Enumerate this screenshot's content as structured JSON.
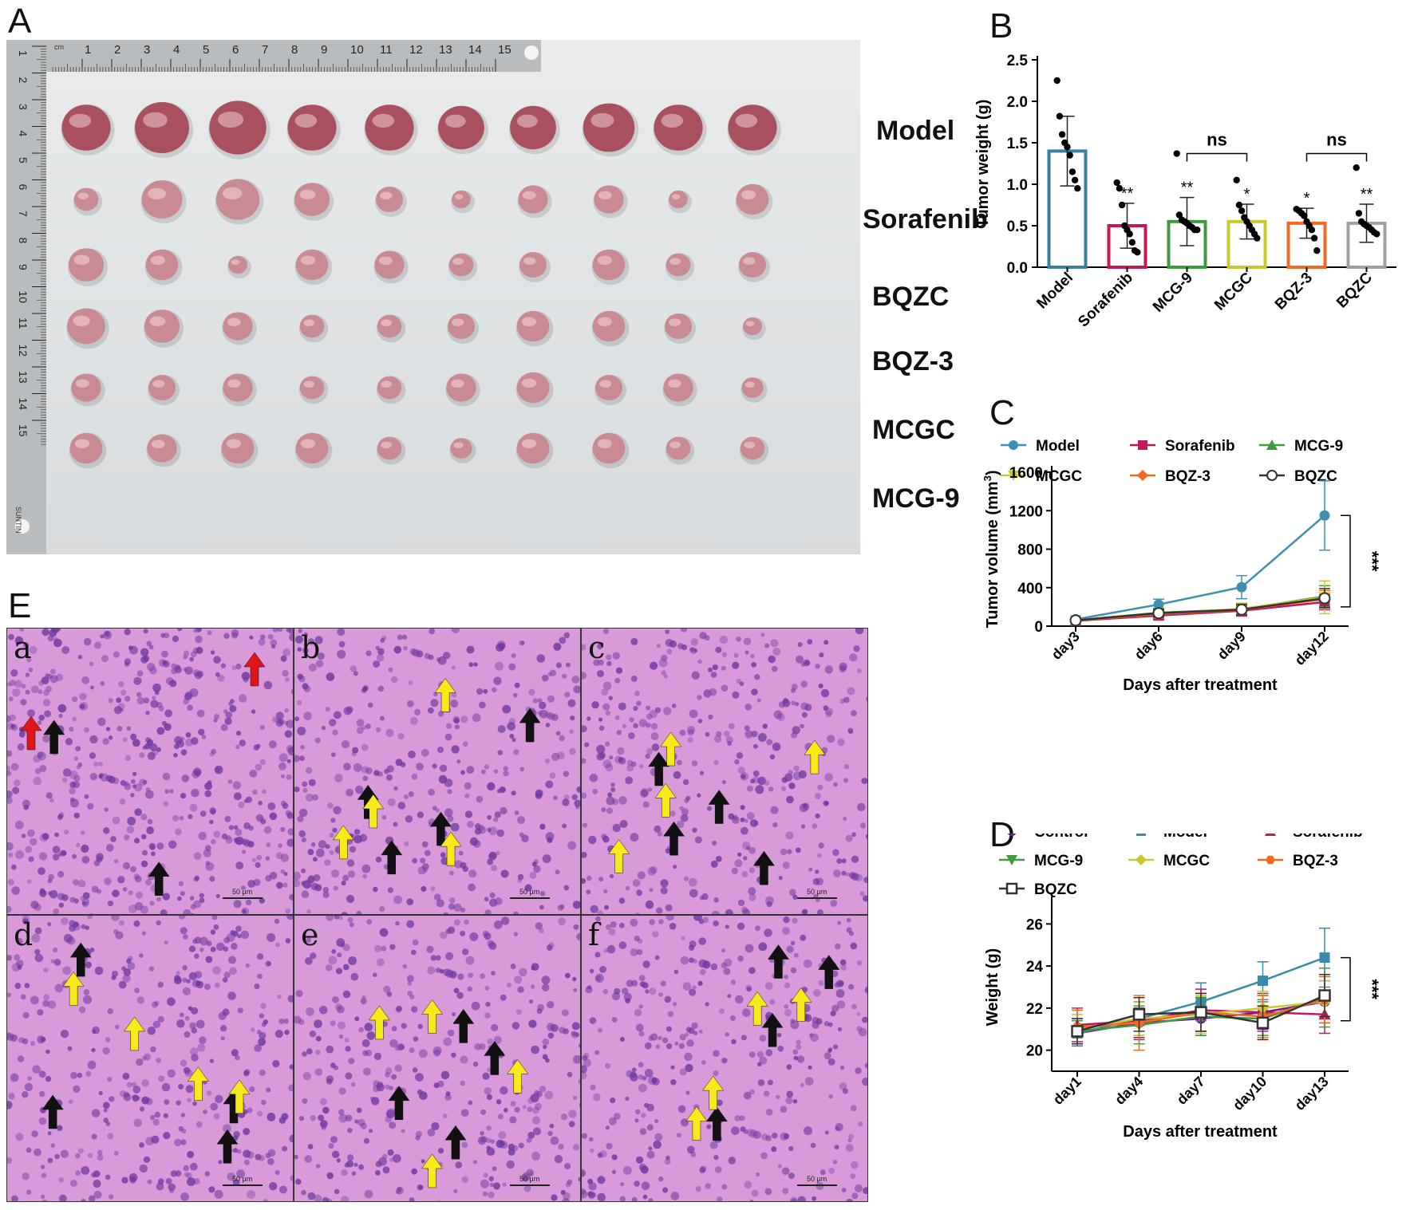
{
  "panels": {
    "A": "A",
    "B": "B",
    "C": "C",
    "D": "D",
    "E": "E"
  },
  "panel_a": {
    "ruler_top_ticks": [
      "1",
      "2",
      "3",
      "4",
      "5",
      "6",
      "7",
      "8",
      "9",
      "10",
      "11",
      "12",
      "13",
      "14",
      "15"
    ],
    "ruler_side_ticks": [
      "1",
      "2",
      "3",
      "4",
      "5",
      "6",
      "7",
      "8",
      "9",
      "10",
      "11",
      "12",
      "13",
      "14",
      "15"
    ],
    "ruler_cm": "cm",
    "ruler_brand": "SUNTIN",
    "rows": [
      "Model",
      "Sorafenib",
      "BQZC",
      "BQZ-3",
      "MCGC",
      "MCG-9"
    ],
    "tumor_sizes": [
      [
        0.9,
        1.0,
        1.05,
        0.9,
        0.9,
        0.85,
        0.85,
        0.95,
        0.9,
        0.9
      ],
      [
        0.45,
        0.75,
        0.8,
        0.65,
        0.5,
        0.35,
        0.55,
        0.55,
        0.35,
        0.6
      ],
      [
        0.65,
        0.6,
        0.35,
        0.6,
        0.55,
        0.45,
        0.5,
        0.6,
        0.45,
        0.5
      ],
      [
        0.7,
        0.65,
        0.55,
        0.45,
        0.45,
        0.5,
        0.6,
        0.6,
        0.5,
        0.35
      ],
      [
        0.55,
        0.5,
        0.55,
        0.45,
        0.45,
        0.55,
        0.6,
        0.5,
        0.55,
        0.4
      ],
      [
        0.6,
        0.55,
        0.6,
        0.6,
        0.45,
        0.4,
        0.6,
        0.6,
        0.45,
        0.45
      ]
    ],
    "colors": {
      "tumor": "#c98b93",
      "tumor_dark": "#a8505e",
      "ruler": "#b9bcbe"
    }
  },
  "panel_e": {
    "tiles": [
      {
        "letter": "a",
        "black_arrows": 2,
        "yellow_arrows": 0,
        "red_arrows": 2,
        "scale": "50 μm"
      },
      {
        "letter": "b",
        "black_arrows": 4,
        "yellow_arrows": 4,
        "red_arrows": 0,
        "scale": "50 μm"
      },
      {
        "letter": "c",
        "black_arrows": 4,
        "yellow_arrows": 4,
        "red_arrows": 0,
        "scale": "50 μm"
      },
      {
        "letter": "d",
        "black_arrows": 4,
        "yellow_arrows": 4,
        "red_arrows": 0,
        "scale": "50 μm"
      },
      {
        "letter": "e",
        "black_arrows": 4,
        "yellow_arrows": 4,
        "red_arrows": 0,
        "scale": "50 μm"
      },
      {
        "letter": "f",
        "black_arrows": 4,
        "yellow_arrows": 4,
        "red_arrows": 0,
        "scale": "50 μm"
      }
    ],
    "colors": {
      "tissue": "#d89ad8",
      "nuclei": "#6d3aa0",
      "black_arrow": "#111111",
      "yellow_arrow": "#f5ea1a",
      "red_arrow": "#e0161b"
    }
  },
  "chart_data": [
    {
      "id": "B",
      "type": "bar",
      "ylabel": "Tumor weight (g)",
      "xlabel": "",
      "ylim": [
        0,
        2.5
      ],
      "yticks": [
        "0.0",
        "0.5",
        "1.0",
        "1.5",
        "2.0",
        "2.5"
      ],
      "categories": [
        "Model",
        "Sorafenib",
        "MCG-9",
        "MCGC",
        "BQZ-3",
        "BQZC"
      ],
      "values": [
        1.4,
        0.5,
        0.55,
        0.55,
        0.53,
        0.53
      ],
      "errors": [
        0.42,
        0.27,
        0.29,
        0.21,
        0.18,
        0.23
      ],
      "bar_colors": [
        "#3a7fa0",
        "#c2185b",
        "#3e9a3a",
        "#c9c92d",
        "#f26a21",
        "#a0a0a0"
      ],
      "points": [
        [
          2.25,
          1.82,
          1.6,
          1.5,
          1.45,
          1.35,
          1.15,
          1.05,
          0.95
        ],
        [
          1.02,
          0.95,
          0.75,
          0.5,
          0.45,
          0.4,
          0.3,
          0.2,
          0.18
        ],
        [
          1.37,
          0.63,
          0.57,
          0.55,
          0.53,
          0.5,
          0.48,
          0.45,
          0.45
        ],
        [
          1.05,
          0.75,
          0.68,
          0.6,
          0.55,
          0.5,
          0.45,
          0.4,
          0.35
        ],
        [
          0.7,
          0.68,
          0.65,
          0.62,
          0.55,
          0.5,
          0.45,
          0.35,
          0.2
        ],
        [
          1.2,
          0.65,
          0.55,
          0.52,
          0.5,
          0.48,
          0.45,
          0.42,
          0.4
        ]
      ],
      "significance": [
        "",
        "**",
        "**",
        "*",
        "*",
        "**"
      ],
      "brackets": [
        {
          "from": "MCG-9",
          "to": "MCGC",
          "label": "ns"
        },
        {
          "from": "BQZ-3",
          "to": "BQZC",
          "label": "ns"
        }
      ]
    },
    {
      "id": "C",
      "type": "line",
      "xlabel": "Days after treatment",
      "ylabel": "Tumor volume (mm",
      "ylabel_sup": "3",
      "ylabel_tail": ")",
      "ylim": [
        0,
        1600
      ],
      "yticks": [
        "0",
        "400",
        "800",
        "1200",
        "1600"
      ],
      "categories": [
        "day3",
        "day6",
        "day9",
        "day12"
      ],
      "series": [
        {
          "name": "Model",
          "marker": "circle",
          "color": "#3f8fb0",
          "values": [
            70,
            225,
            405,
            1150
          ],
          "errors": [
            15,
            55,
            120,
            360
          ]
        },
        {
          "name": "Sorafenib",
          "marker": "square",
          "color": "#c2185b",
          "values": [
            55,
            110,
            160,
            250
          ],
          "errors": [
            12,
            40,
            55,
            80
          ]
        },
        {
          "name": "MCG-9",
          "marker": "triangle-up",
          "color": "#3e9a3a",
          "values": [
            60,
            140,
            175,
            310
          ],
          "errors": [
            15,
            45,
            60,
            110
          ]
        },
        {
          "name": "MCGC",
          "marker": "triangle-down",
          "color": "#c9c92d",
          "values": [
            62,
            130,
            180,
            300
          ],
          "errors": [
            15,
            40,
            60,
            170
          ]
        },
        {
          "name": "BQZ-3",
          "marker": "diamond",
          "color": "#f26a21",
          "values": [
            58,
            125,
            170,
            280
          ],
          "errors": [
            15,
            40,
            55,
            90
          ]
        },
        {
          "name": "BQZC",
          "marker": "open-circle",
          "color": "#333333",
          "values": [
            60,
            135,
            172,
            290
          ],
          "errors": [
            15,
            40,
            55,
            100
          ]
        }
      ],
      "significance": "***"
    },
    {
      "id": "D",
      "type": "line",
      "xlabel": "Days after treatment",
      "ylabel": "Weight (g)",
      "ylim": [
        19,
        27
      ],
      "yticks": [
        "20",
        "22",
        "24",
        "26"
      ],
      "categories": [
        "day1",
        "day4",
        "day7",
        "day10",
        "day13"
      ],
      "series": [
        {
          "name": "Control",
          "marker": "circle",
          "color": "#6a1b9a",
          "values": [
            20.8,
            21.3,
            21.5,
            21.8,
            22.3
          ],
          "errors": [
            0.6,
            0.7,
            0.8,
            0.8,
            1.0
          ]
        },
        {
          "name": "Model",
          "marker": "square",
          "color": "#3a8aa8",
          "values": [
            20.8,
            21.5,
            22.3,
            23.3,
            24.4
          ],
          "errors": [
            0.6,
            0.8,
            0.9,
            0.9,
            1.4
          ]
        },
        {
          "name": "Sorafenib",
          "marker": "triangle-up",
          "color": "#c2185b",
          "values": [
            21.2,
            21.4,
            21.9,
            21.8,
            21.7
          ],
          "errors": [
            0.8,
            0.9,
            1.0,
            0.9,
            0.9
          ]
        },
        {
          "name": "MCG-9",
          "marker": "triangle-down",
          "color": "#3e9a3a",
          "values": [
            20.9,
            21.2,
            21.6,
            21.5,
            22.5
          ],
          "errors": [
            0.6,
            0.9,
            0.9,
            0.8,
            1.4
          ]
        },
        {
          "name": "MCGC",
          "marker": "diamond",
          "color": "#c9c92d",
          "values": [
            21.0,
            21.5,
            21.7,
            22.0,
            22.3
          ],
          "errors": [
            0.7,
            0.8,
            0.9,
            0.8,
            1.0
          ]
        },
        {
          "name": "BQZ-3",
          "marker": "hexagon",
          "color": "#f26a21",
          "values": [
            21.1,
            21.3,
            21.8,
            21.6,
            22.4
          ],
          "errors": [
            0.8,
            1.3,
            0.9,
            1.0,
            1.1
          ]
        },
        {
          "name": "BQZC",
          "marker": "open-square",
          "color": "#333333",
          "values": [
            20.9,
            21.7,
            21.8,
            21.3,
            22.6
          ],
          "errors": [
            0.6,
            0.8,
            0.9,
            0.8,
            1.0
          ]
        }
      ],
      "significance": "***"
    }
  ]
}
